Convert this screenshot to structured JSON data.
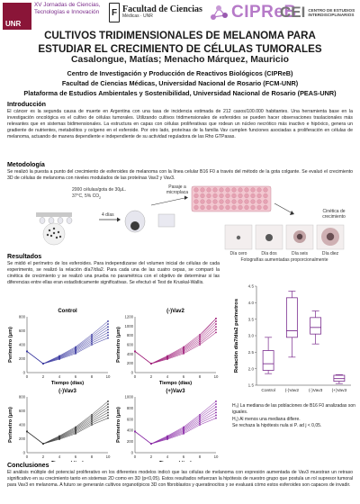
{
  "header": {
    "unr": "UNR",
    "jornadas": "XV Jornadas de Ciencias, Tecnologías e Innovación",
    "fcm_title": "Facultad de Ciencias",
    "fcm_sub": "Médicas · UNR",
    "cipreb": "CIPReB",
    "cei_mark": "CEI",
    "cei_text": "CENTRO DE ESTUDIOS INTERDISCIPLINARIOS"
  },
  "title_line1": "CULTIVOS TRIDIMENSIONALES DE MELANOMA PARA",
  "title_line2": "ESTUDIAR EL CRECIMIENTO DE CÉLULAS TUMORALES",
  "authors": "Casalongue, Matías; Menacho Márquez, Mauricio",
  "affiliations": [
    "Centro de Investigación y Producción de Reactivos Biológicos (CIPReB)",
    "Facultad de Ciencias Médicas, Universidad Nacional de Rosario (FCM-UNR)",
    "Plataforma de Estudios Ambientales y Sostenibilidad, Universidad Nacional de Rosario (PEAS-UNR)"
  ],
  "intro": {
    "heading": "Introducción",
    "text": "El cáncer es la segunda causa de muerte en Argentina con una tasa de incidencia estimada de 212 casos/100.000 habitantes. Una herramienta base en la investigación oncológica es el cultivo de células tumorales. Utilizando cultivos tridimensionales de esferoides se pueden hacer observaciones traslacionales más relevantes que en sistemas bidimensionales. La estructura en capas con células proliferativas que rodean un núcleo necrótico más inactivo e hipóxico, genera un gradiente de nutrientes, metabolitos y oxígeno en el esferoide. Por otro lado, proteínas de la familia Vav cumplen funciones asociadas a proliferación en células de melanoma, actuando de manera dependiente e independiente de su actividad reguladora de las Rho GTPasas."
  },
  "method": {
    "heading": "Metodología",
    "text": "Se realizó la puesta a punto del crecimiento de esferoides de melanoma con la línea celular B16 F0 a través del método de la gota colgante. Se evaluó el crecimiento 3D de células de melanoma con niveles modulados de las proteínas Vav2 y Vav3.",
    "drop_label1": "2000 células/gota de 30μL.",
    "drop_label2": "37°C, 5% CO",
    "drop_label2_sub": "2",
    "days_label": "4 días",
    "pasaje_label": "Pasaje a microplaca",
    "cinetica_label": "Cinética de crecimiento",
    "day_labels": [
      "Día cero",
      "Día dos",
      "Día seis",
      "Día diez"
    ],
    "photo_caption": "Fotografías aumentadas proporcionalmente"
  },
  "results": {
    "heading": "Resultados",
    "text": "Se midió el perímetro de los esferoides. Para independizarse del volumen inicial de células de cada experimento, se realizó la relación día7/día2. Para cada una de las cuatro cepas, se comparó la cinética de crecimiento y se realizó una prueba no paramétrica con el objetivo de determinar si las diferencias entre ellas eran estadísticamente significativas. Se efectuó el Test de Kruskal-Wallis."
  },
  "line_panels": [
    {
      "title": "Control",
      "yticks": [
        "800",
        "600",
        "400",
        "200",
        "0"
      ],
      "ymax": 800,
      "color": "#3b3aa0"
    },
    {
      "title": "(-)Vav2",
      "yticks": [
        "1200",
        "1000",
        "800",
        "600",
        "400",
        "200",
        "0"
      ],
      "ymax": 1200,
      "color": "#a0207a"
    },
    {
      "title": "(-)Vav3",
      "yticks": [
        "800",
        "600",
        "400",
        "200",
        "0"
      ],
      "ymax": 800,
      "color": "#3a3a3a"
    },
    {
      "title": "(+)Vav3",
      "yticks": [
        "1000",
        "800",
        "600",
        "400",
        "200",
        "0"
      ],
      "ymax": 1000,
      "color": "#8a2aa6"
    }
  ],
  "line_axes": {
    "ylabel": "Perímetro (μm)",
    "xlabel": "Tiempo (días)",
    "xticks": [
      "0",
      "2",
      "4",
      "6",
      "8",
      "10"
    ]
  },
  "chart_data": {
    "type": "box",
    "ylabel": "Relación día7/día2 perímetros",
    "ylim": [
      1.5,
      4.5
    ],
    "yticks": [
      "4.5",
      "4.0",
      "3.5",
      "3.0",
      "2.5",
      "2.0",
      "1.5"
    ],
    "categories": [
      "Control",
      "(-)Vav2",
      "(-)Vav3",
      "(+)Vav3"
    ],
    "boxes": [
      {
        "min": 1.85,
        "q1": 1.95,
        "median": 2.15,
        "q3": 2.55,
        "max": 2.95,
        "color": "#7b2d8e"
      },
      {
        "min": 2.35,
        "q1": 2.95,
        "median": 3.15,
        "q3": 4.15,
        "max": 4.35,
        "color": "#7b2d8e"
      },
      {
        "min": 2.75,
        "q1": 3.05,
        "median": 3.25,
        "q3": 3.55,
        "max": 3.75,
        "color": "#7b2d8e"
      },
      {
        "min": 1.55,
        "q1": 1.62,
        "median": 1.7,
        "q3": 1.8,
        "max": 1.82,
        "color": "#7b2d8e"
      }
    ]
  },
  "hypotheses": {
    "h0": "H₀) La mediana de las poblaciones de B16 F0 analizadas son iguales.",
    "h1": "H₁) Al menos una mediana difiere.",
    "reject": "Se rechaza la hipótesis nula si P. ad j < 0,05."
  },
  "conclusions": {
    "heading": "Conclusiones",
    "text": "El análisis múltiple del potencial proliferativo en los diferentes modelos indicó que las células de melanoma con expresión aumentada de Vav3 muestran un retraso significativo en su crecimiento tanto en sistemas 2D como en 3D (p<0,05). Estos resultados refuerzan la hipótesis de nuestro grupo que postula un rol supresor tumoral para Vav3 en melanoma. A futuro se generarán cultivos organotípicos 3D con fibroblastos y queratinocitos y se evaluará cómo estos esferoides son capaces de invadir."
  }
}
